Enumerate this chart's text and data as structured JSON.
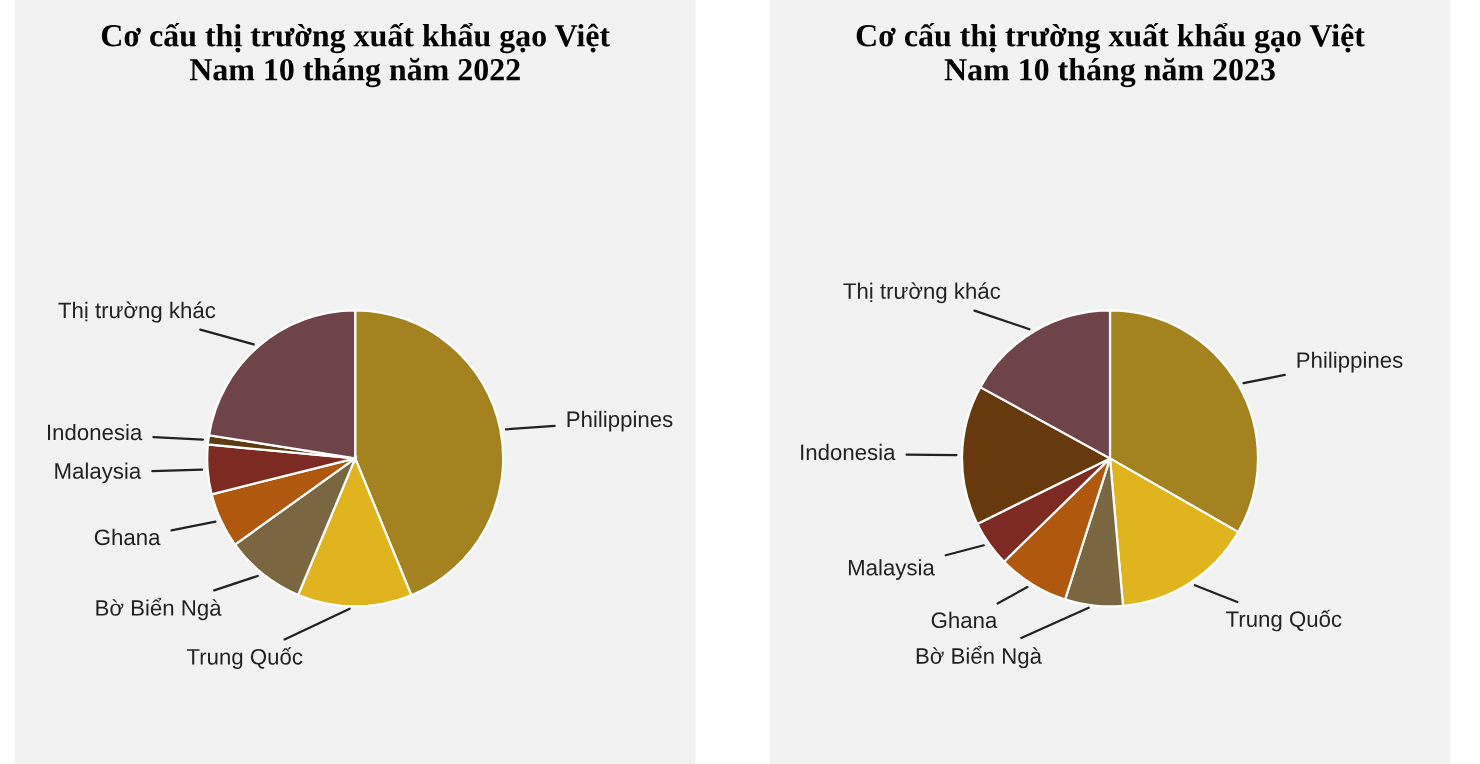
{
  "chart_data": [
    {
      "type": "pie",
      "title": "Cơ cấu thị trường xuất khẩu gạo Việt\nNam 10 tháng năm 2022",
      "categories": [
        "Philippines",
        "Trung Quốc",
        "Bờ Biển Ngà",
        "Ghana",
        "Malaysia",
        "Indonesia",
        "Thị trường khác"
      ],
      "values": [
        43.8,
        12.5,
        8.8,
        6,
        5.4,
        1,
        22.5
      ],
      "colors": [
        "#a3821f",
        "#e0b41e",
        "#7a6640",
        "#b0580e",
        "#7c2a22",
        "#5c3a12",
        "#6e4448"
      ]
    },
    {
      "type": "pie",
      "title": "Cơ cấu thị trường xuất khẩu gạo Việt\nNam 10 tháng năm 2023",
      "categories": [
        "Philippines",
        "Trung Quốc",
        "Bờ Biển Ngà",
        "Ghana",
        "Malaysia",
        "Indonesia",
        "Thị trường khác"
      ],
      "values": [
        33.3,
        15.3,
        6.3,
        7.8,
        5,
        15.3,
        17
      ],
      "colors": [
        "#a3821f",
        "#e0b41e",
        "#7a6640",
        "#b0580e",
        "#7c2a22",
        "#663a0c",
        "#6e4448"
      ]
    }
  ]
}
